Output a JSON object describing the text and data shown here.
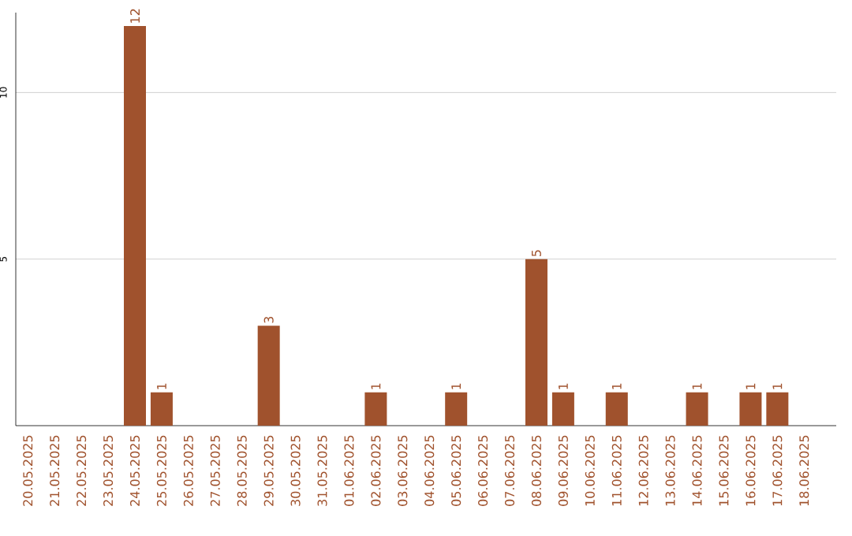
{
  "chart_data": {
    "type": "bar",
    "categories": [
      "20.05.2025",
      "21.05.2025",
      "22.05.2025",
      "23.05.2025",
      "24.05.2025",
      "25.05.2025",
      "26.05.2025",
      "27.05.2025",
      "28.05.2025",
      "29.05.2025",
      "30.05.2025",
      "31.05.2025",
      "01.06.2025",
      "02.06.2025",
      "03.06.2025",
      "04.06.2025",
      "05.06.2025",
      "06.06.2025",
      "07.06.2025",
      "08.06.2025",
      "09.06.2025",
      "10.06.2025",
      "11.06.2025",
      "12.06.2025",
      "13.06.2025",
      "14.06.2025",
      "15.06.2025",
      "16.06.2025",
      "17.06.2025",
      "18.06.2025"
    ],
    "values": [
      0,
      0,
      0,
      0,
      12,
      1,
      0,
      0,
      0,
      3,
      0,
      0,
      0,
      1,
      0,
      0,
      1,
      0,
      0,
      5,
      1,
      0,
      1,
      0,
      0,
      1,
      0,
      1,
      1,
      0
    ],
    "value_labels": [
      null,
      null,
      null,
      null,
      "12",
      "1",
      null,
      null,
      null,
      "3",
      null,
      null,
      null,
      "1",
      null,
      null,
      "1",
      null,
      null,
      "5",
      "1",
      null,
      "1",
      null,
      null,
      "1",
      null,
      "1",
      "1",
      null
    ],
    "color": "#a0522d",
    "ylim": [
      0,
      12.4
    ],
    "yticks": [
      5,
      10
    ],
    "grid": "y"
  }
}
